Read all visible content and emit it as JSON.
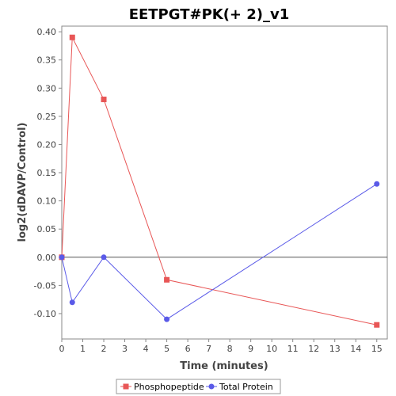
{
  "chart_data": {
    "type": "line",
    "title": "EETPGT#PK(+ 2)_v1",
    "xlabel": "Time (minutes)",
    "ylabel": "log2(dDAVP/Control)",
    "xlim": [
      0,
      15.5
    ],
    "ylim": [
      -0.145,
      0.41
    ],
    "xticks": [
      0,
      1,
      2,
      3,
      4,
      5,
      6,
      7,
      8,
      9,
      10,
      11,
      12,
      13,
      14,
      15
    ],
    "yticks": [
      -0.1,
      -0.05,
      0.0,
      0.05,
      0.1,
      0.15,
      0.2,
      0.25,
      0.3,
      0.35,
      0.4
    ],
    "ytick_labels": [
      "-0.10",
      "-0.05",
      "0.00",
      "0.05",
      "0.10",
      "0.15",
      "0.20",
      "0.25",
      "0.30",
      "0.35",
      "0.40"
    ],
    "grid": false,
    "zero_line": true,
    "legend_position": "bottom",
    "series": [
      {
        "name": "Phosphopeptide",
        "color": "#e85656",
        "marker": "square",
        "x": [
          0,
          0.5,
          2,
          5,
          15
        ],
        "y": [
          0.0,
          0.39,
          0.28,
          -0.04,
          -0.12
        ]
      },
      {
        "name": "Total Protein",
        "color": "#5a5ae8",
        "marker": "circle",
        "x": [
          0,
          0.5,
          2,
          5,
          15
        ],
        "y": [
          0.0,
          -0.08,
          0.0,
          -0.11,
          0.13
        ]
      }
    ]
  }
}
